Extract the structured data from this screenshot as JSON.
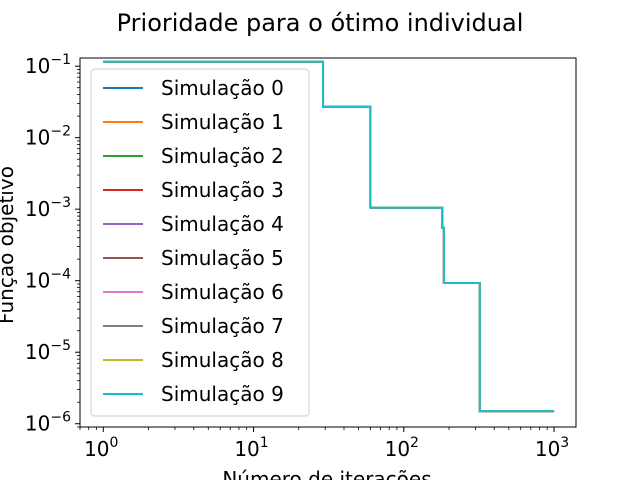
{
  "chart_data": {
    "type": "line",
    "title": "Prioridade para o ótimo individual",
    "xlabel": "Número de iterações",
    "ylabel": "Função objetivo",
    "xscale": "log",
    "yscale": "log",
    "xlim": [
      0.7,
      1400
    ],
    "ylim": [
      9e-07,
      0.13
    ],
    "x_ticks": [
      {
        "value": 1,
        "base": "10",
        "exp": "0"
      },
      {
        "value": 10,
        "base": "10",
        "exp": "1"
      },
      {
        "value": 100,
        "base": "10",
        "exp": "2"
      },
      {
        "value": 1000,
        "base": "10",
        "exp": "3"
      }
    ],
    "y_ticks": [
      {
        "value": 1e-06,
        "base": "10",
        "exp": "−6"
      },
      {
        "value": 1e-05,
        "base": "10",
        "exp": "−5"
      },
      {
        "value": 0.0001,
        "base": "10",
        "exp": "−4"
      },
      {
        "value": 0.001,
        "base": "10",
        "exp": "−3"
      },
      {
        "value": 0.01,
        "base": "10",
        "exp": "−2"
      },
      {
        "value": 0.1,
        "base": "10",
        "exp": "−1"
      }
    ],
    "grid": false,
    "legend_position": "upper-left",
    "series": [
      {
        "name": "Simulação 0",
        "color": "#1f77b4",
        "x": [
          1,
          28,
          29,
          59,
          60,
          165,
          180,
          185,
          320,
          1000
        ],
        "y": [
          0.115,
          0.115,
          0.027,
          0.027,
          0.00105,
          0.00105,
          0.00055,
          9.3e-05,
          1.5e-06,
          1.5e-06
        ]
      },
      {
        "name": "Simulação 1",
        "color": "#ff7f0e",
        "x": [
          1,
          28,
          29,
          59,
          60,
          165,
          180,
          185,
          320,
          1000
        ],
        "y": [
          0.115,
          0.115,
          0.027,
          0.027,
          0.00105,
          0.00105,
          0.00055,
          9.3e-05,
          1.5e-06,
          1.5e-06
        ]
      },
      {
        "name": "Simulação 2",
        "color": "#2ca02c",
        "x": [
          1,
          28,
          29,
          59,
          60,
          165,
          180,
          185,
          320,
          1000
        ],
        "y": [
          0.115,
          0.115,
          0.027,
          0.027,
          0.00105,
          0.00105,
          0.00055,
          9.3e-05,
          1.5e-06,
          1.5e-06
        ]
      },
      {
        "name": "Simulação 3",
        "color": "#d62728",
        "x": [
          1,
          28,
          29,
          59,
          60,
          165,
          180,
          185,
          320,
          1000
        ],
        "y": [
          0.115,
          0.115,
          0.027,
          0.027,
          0.00105,
          0.00105,
          0.00055,
          9.3e-05,
          1.5e-06,
          1.5e-06
        ]
      },
      {
        "name": "Simulação 4",
        "color": "#9467bd",
        "x": [
          1,
          28,
          29,
          59,
          60,
          165,
          180,
          185,
          320,
          1000
        ],
        "y": [
          0.115,
          0.115,
          0.027,
          0.027,
          0.00105,
          0.00105,
          0.00055,
          9.3e-05,
          1.5e-06,
          1.5e-06
        ]
      },
      {
        "name": "Simulação 5",
        "color": "#8c564b",
        "x": [
          1,
          28,
          29,
          59,
          60,
          165,
          180,
          185,
          320,
          1000
        ],
        "y": [
          0.115,
          0.115,
          0.027,
          0.027,
          0.00105,
          0.00105,
          0.00055,
          9.3e-05,
          1.5e-06,
          1.5e-06
        ]
      },
      {
        "name": "Simulação 6",
        "color": "#e377c2",
        "x": [
          1,
          28,
          29,
          59,
          60,
          165,
          180,
          185,
          320,
          1000
        ],
        "y": [
          0.115,
          0.115,
          0.027,
          0.027,
          0.00105,
          0.00105,
          0.00055,
          9.3e-05,
          1.5e-06,
          1.5e-06
        ]
      },
      {
        "name": "Simulação 7",
        "color": "#7f7f7f",
        "x": [
          1,
          28,
          29,
          59,
          60,
          165,
          180,
          185,
          320,
          1000
        ],
        "y": [
          0.115,
          0.115,
          0.027,
          0.027,
          0.00105,
          0.00105,
          0.00055,
          9.3e-05,
          1.5e-06,
          1.5e-06
        ]
      },
      {
        "name": "Simulação 8",
        "color": "#bcbd22",
        "x": [
          1,
          28,
          29,
          59,
          60,
          165,
          180,
          185,
          320,
          1000
        ],
        "y": [
          0.115,
          0.115,
          0.027,
          0.027,
          0.00105,
          0.00105,
          0.00055,
          9.3e-05,
          1.5e-06,
          1.5e-06
        ]
      },
      {
        "name": "Simulação 9",
        "color": "#17becf",
        "x": [
          1,
          28,
          29,
          59,
          60,
          165,
          180,
          185,
          320,
          1000
        ],
        "y": [
          0.115,
          0.115,
          0.027,
          0.027,
          0.00105,
          0.00105,
          0.00055,
          9.3e-05,
          1.5e-06,
          1.5e-06
        ]
      }
    ]
  }
}
